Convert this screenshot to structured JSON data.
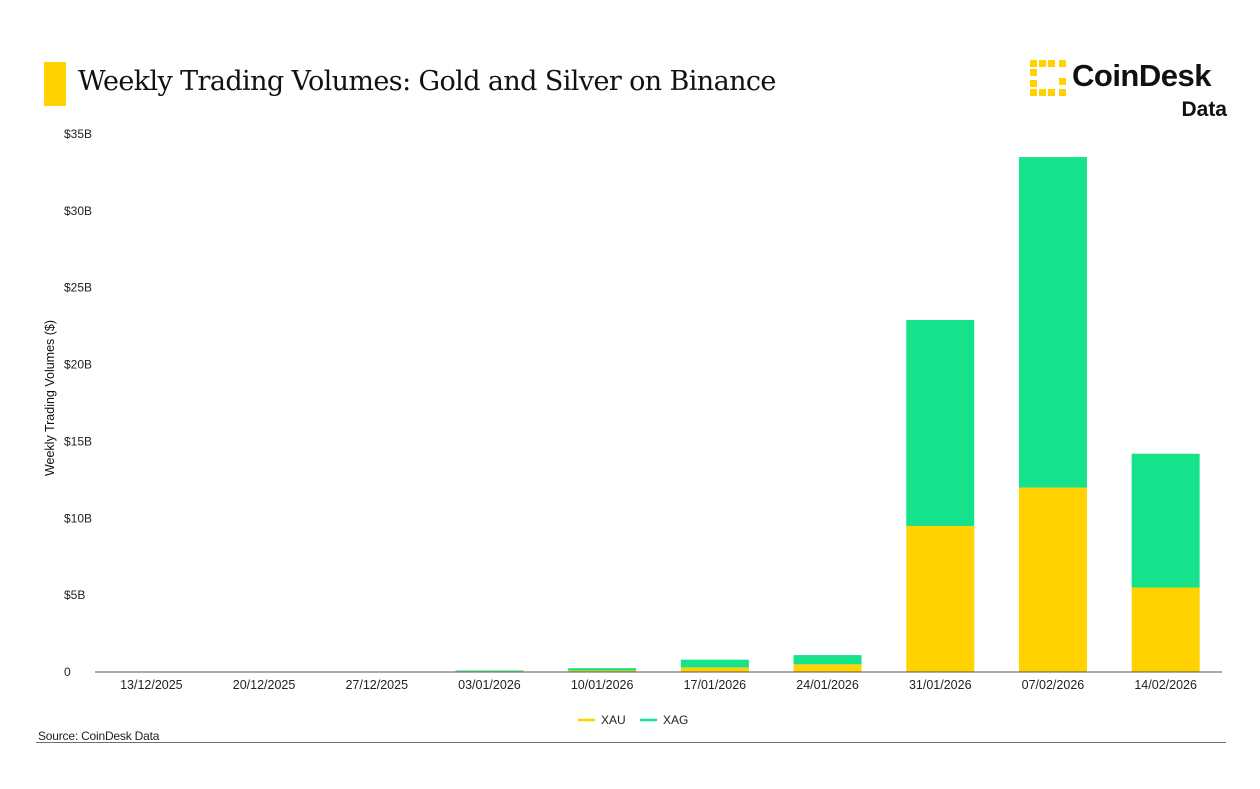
{
  "header": {
    "title": "Weekly Trading Volumes: Gold and Silver on Binance",
    "accent_color": "#FFD200"
  },
  "logo": {
    "name": "CoinDesk",
    "sub": "Data",
    "icon": "coindesk-bracket-icon"
  },
  "source": "Source: CoinDesk Data",
  "chart_data": {
    "type": "bar",
    "stacked": true,
    "categories": [
      "13/12/2025",
      "20/12/2025",
      "27/12/2025",
      "03/01/2026",
      "10/01/2026",
      "17/01/2026",
      "24/01/2026",
      "31/01/2026",
      "07/02/2026",
      "14/02/2026"
    ],
    "series": [
      {
        "name": "XAU",
        "color": "#FFD200",
        "values": [
          0,
          0,
          0,
          0.05,
          0.1,
          0.3,
          0.5,
          9.5,
          12.0,
          5.5
        ]
      },
      {
        "name": "XAG",
        "color": "#17E28C",
        "values": [
          0,
          0,
          0,
          0.05,
          0.15,
          0.5,
          0.6,
          13.4,
          21.5,
          8.7
        ]
      }
    ],
    "title": "Weekly Trading Volumes: Gold and Silver on Binance",
    "xlabel": "",
    "ylabel": "Weekly Trading Volumes ($)",
    "ylim": [
      0,
      35
    ],
    "yticks": [
      0,
      5,
      10,
      15,
      20,
      25,
      30,
      35
    ],
    "ytick_labels": [
      "0",
      "$5B",
      "$10B",
      "$15B",
      "$20B",
      "$25B",
      "$30B",
      "$35B"
    ],
    "grid": false,
    "legend": "bottom-center"
  }
}
